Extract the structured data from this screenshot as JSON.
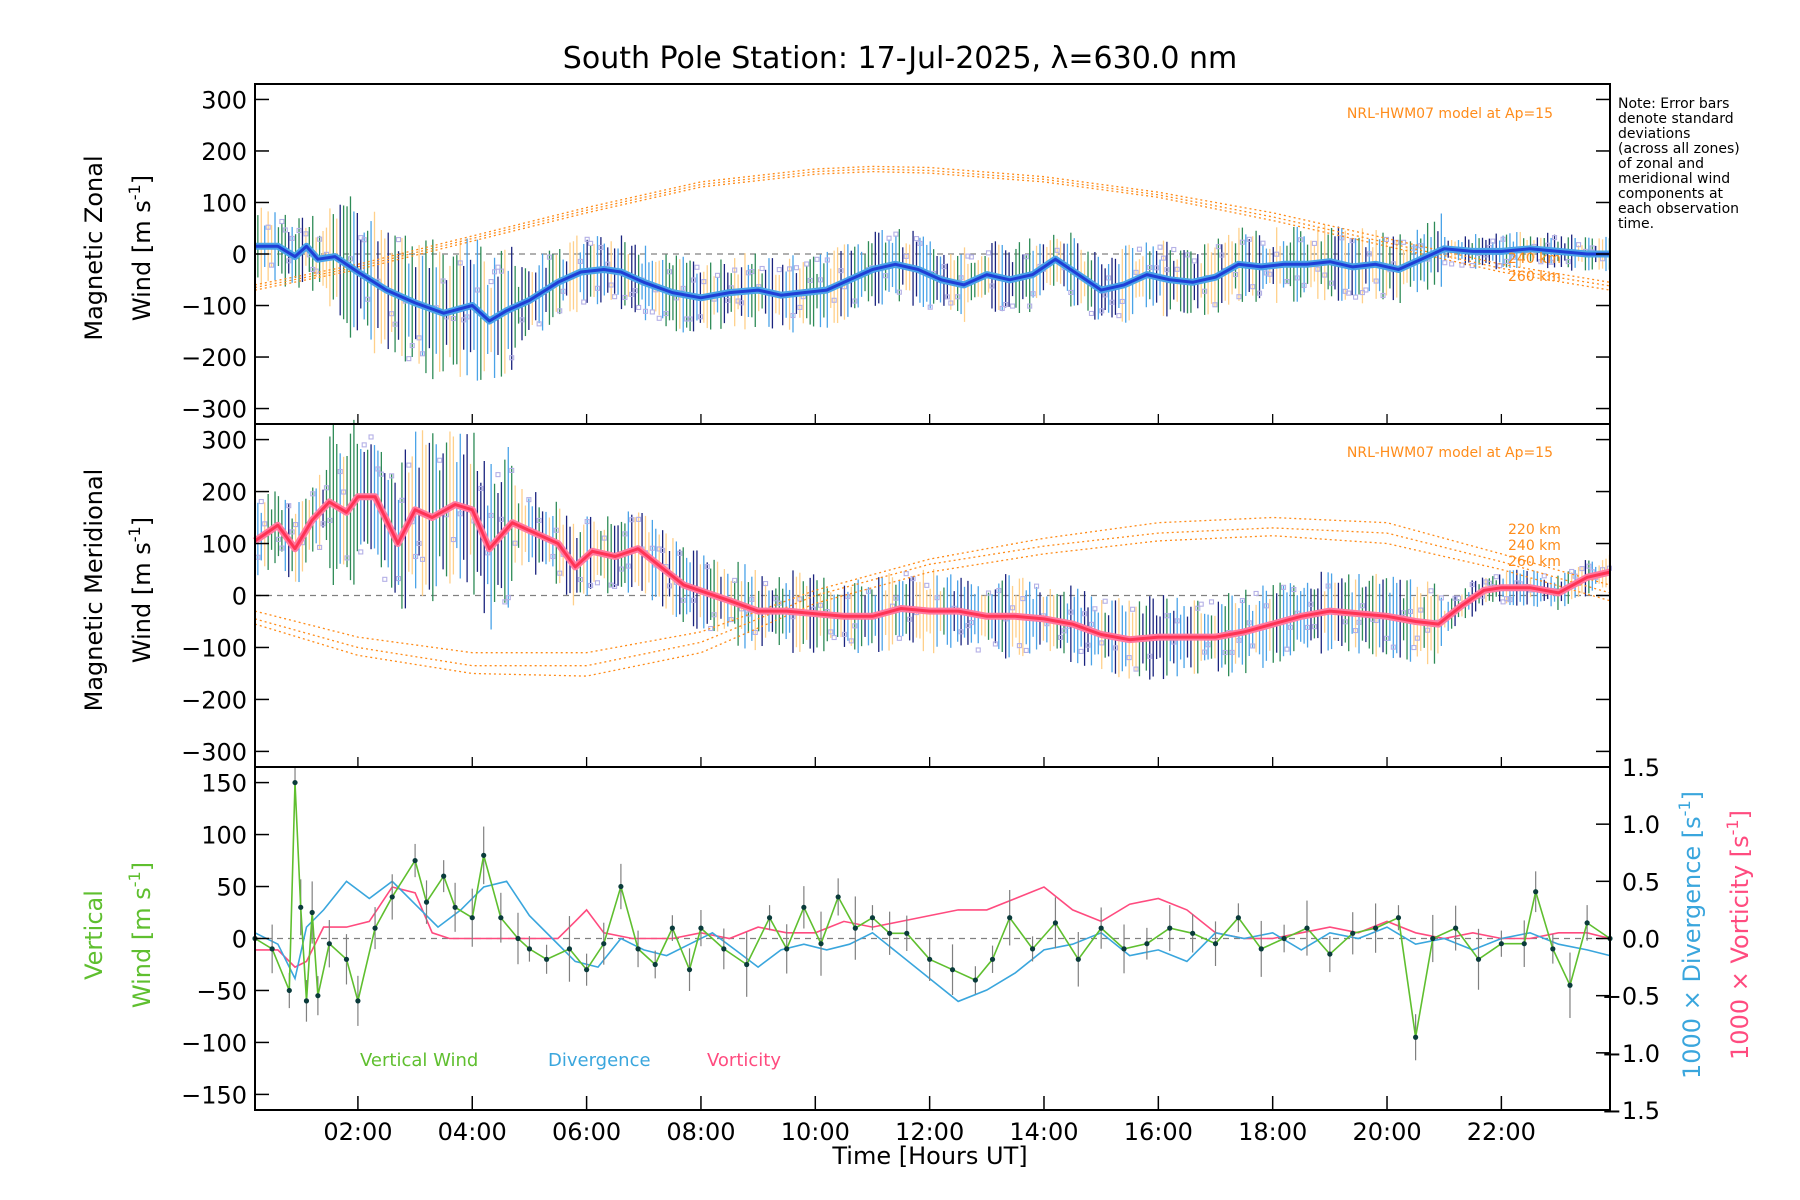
{
  "colors": {
    "zonal_mean": "#1f3fd6",
    "zonal_light": "#4aa3e8",
    "meridional_mean": "#ff3355",
    "meridional_light": "#ff7aa0",
    "model": "#ff8c1a",
    "scatter": "#b4b0e6",
    "err_dark": "#1a237e",
    "err_green": "#2e8b57",
    "err_light": "#ffd08a",
    "vertical": "#5fbf2f",
    "vertical_pts": "#0a3b3b",
    "divergence": "#3aa6dd",
    "vorticity": "#ff4b7f",
    "grey": "#808080"
  },
  "chart_data": [
    {
      "type": "line",
      "panel": "zonal",
      "title": "South Pole Station: 17-Jul-2025, λ=630.0 nm",
      "ylabel_line1": "Magnetic Zonal",
      "ylabel_line2": "Wind [m s",
      "ylabel_exp": "-1",
      "ylabel_close": "]",
      "xlim": [
        0.2,
        23.9
      ],
      "ylim": [
        -330,
        330
      ],
      "yticks": [
        300,
        200,
        100,
        0,
        -100,
        -200,
        -300
      ],
      "ytick_labels": [
        "300",
        "200",
        "100",
        "0",
        "−100",
        "−200",
        "−300"
      ],
      "model_label": "NRL-HWM07 model at Ap=15",
      "model_altitudes": [
        "240 km",
        "260 km"
      ],
      "series": [
        {
          "name": "Zonal wind mean",
          "x": [
            0.2,
            0.6,
            0.9,
            1.1,
            1.3,
            1.6,
            2.0,
            2.5,
            3.0,
            3.5,
            4.0,
            4.3,
            4.6,
            5.0,
            5.5,
            5.9,
            6.3,
            6.6,
            7.0,
            7.5,
            8.0,
            8.5,
            9.0,
            9.4,
            9.8,
            10.2,
            10.6,
            11.0,
            11.4,
            11.8,
            12.2,
            12.6,
            13.0,
            13.4,
            13.8,
            14.2,
            14.6,
            15.0,
            15.4,
            15.8,
            16.2,
            16.6,
            17.0,
            17.4,
            17.8,
            18.2,
            18.6,
            19.0,
            19.4,
            19.8,
            20.2,
            20.6,
            21.0,
            21.5,
            22.0,
            22.5,
            23.0,
            23.5,
            23.9
          ],
          "y": [
            15,
            15,
            -5,
            15,
            -10,
            -5,
            -35,
            -70,
            -95,
            -115,
            -100,
            -130,
            -110,
            -90,
            -55,
            -35,
            -30,
            -35,
            -55,
            -75,
            -85,
            -75,
            -70,
            -80,
            -75,
            -70,
            -50,
            -30,
            -20,
            -30,
            -50,
            -60,
            -40,
            -50,
            -40,
            -10,
            -40,
            -70,
            -60,
            -40,
            -50,
            -55,
            -45,
            -20,
            -25,
            -20,
            -20,
            -15,
            -25,
            -20,
            -30,
            -10,
            10,
            5,
            5,
            10,
            5,
            0,
            0
          ]
        },
        {
          "name": "HWM07 220 km",
          "x": [
            0.2,
            2,
            4,
            6,
            8,
            10,
            11,
            12,
            14,
            16,
            18,
            20,
            22,
            23.9
          ],
          "y": [
            -60,
            -20,
            35,
            90,
            140,
            165,
            170,
            168,
            150,
            120,
            80,
            30,
            -20,
            -55
          ]
        },
        {
          "name": "HWM07 240 km",
          "x": [
            0.2,
            2,
            4,
            6,
            8,
            10,
            11,
            12,
            14,
            16,
            18,
            20,
            22,
            23.9
          ],
          "y": [
            -65,
            -25,
            30,
            85,
            135,
            160,
            165,
            162,
            145,
            115,
            72,
            22,
            -28,
            -62
          ]
        },
        {
          "name": "HWM07 260 km",
          "x": [
            0.2,
            2,
            4,
            6,
            8,
            10,
            11,
            12,
            14,
            16,
            18,
            20,
            22,
            23.9
          ],
          "y": [
            -70,
            -30,
            25,
            80,
            130,
            155,
            160,
            157,
            140,
            110,
            65,
            15,
            -35,
            -70
          ]
        }
      ]
    },
    {
      "type": "line",
      "panel": "meridional",
      "ylabel_line1": "Magnetic Meridional",
      "ylabel_line2": "Wind [m s",
      "ylabel_exp": "-1",
      "ylabel_close": "]",
      "xlim": [
        0.2,
        23.9
      ],
      "ylim": [
        -330,
        330
      ],
      "yticks": [
        300,
        200,
        100,
        0,
        -100,
        -200,
        -300
      ],
      "ytick_labels": [
        "300",
        "200",
        "100",
        "0",
        "−100",
        "−200",
        "−300"
      ],
      "model_label": "NRL-HWM07 model at Ap=15",
      "model_altitudes": [
        "220 km",
        "240 km",
        "260 km"
      ],
      "series": [
        {
          "name": "Meridional wind mean",
          "x": [
            0.2,
            0.6,
            0.9,
            1.2,
            1.5,
            1.8,
            2.0,
            2.3,
            2.7,
            3.0,
            3.3,
            3.7,
            4.0,
            4.3,
            4.7,
            5.0,
            5.5,
            5.8,
            6.1,
            6.5,
            6.9,
            7.3,
            7.7,
            8.1,
            8.5,
            9.0,
            9.5,
            10.0,
            10.5,
            11.0,
            11.5,
            12.0,
            12.5,
            13.0,
            13.5,
            14.0,
            14.5,
            15.0,
            15.5,
            16.0,
            16.5,
            17.0,
            17.5,
            18.0,
            18.5,
            19.0,
            19.5,
            20.0,
            20.5,
            20.9,
            21.3,
            21.7,
            22.0,
            22.5,
            23.0,
            23.5,
            23.9
          ],
          "y": [
            105,
            135,
            90,
            145,
            180,
            160,
            190,
            190,
            100,
            165,
            150,
            175,
            165,
            90,
            140,
            125,
            100,
            55,
            85,
            75,
            90,
            55,
            20,
            5,
            -10,
            -30,
            -30,
            -35,
            -40,
            -40,
            -25,
            -30,
            -30,
            -40,
            -40,
            -45,
            -55,
            -75,
            -85,
            -80,
            -80,
            -80,
            -70,
            -55,
            -40,
            -30,
            -35,
            -40,
            -50,
            -55,
            -20,
            10,
            15,
            15,
            5,
            35,
            45
          ]
        },
        {
          "name": "HWM07 220 km",
          "x": [
            0.2,
            2,
            4,
            6,
            8,
            10,
            12,
            14,
            16,
            18,
            20,
            22,
            23.9
          ],
          "y": [
            -30,
            -80,
            -110,
            -110,
            -70,
            10,
            70,
            110,
            140,
            150,
            140,
            80,
            20
          ]
        },
        {
          "name": "HWM07 240 km",
          "x": [
            0.2,
            2,
            4,
            6,
            8,
            10,
            12,
            14,
            16,
            18,
            20,
            22,
            23.9
          ],
          "y": [
            -45,
            -100,
            -135,
            -135,
            -90,
            0,
            60,
            95,
            120,
            130,
            120,
            65,
            5
          ]
        },
        {
          "name": "HWM07 260 km",
          "x": [
            0.2,
            2,
            4,
            6,
            8,
            10,
            12,
            14,
            16,
            18,
            20,
            22,
            23.9
          ],
          "y": [
            -55,
            -115,
            -150,
            -155,
            -110,
            -15,
            45,
            80,
            105,
            115,
            100,
            50,
            -10
          ]
        }
      ]
    },
    {
      "type": "line",
      "panel": "vertical",
      "ylabel_line1": "Vertical",
      "ylabel_line2": "Wind [m s",
      "ylabel_exp": "-1",
      "ylabel_close": "]",
      "y2label_div": "1000 × Divergence [s",
      "y2label_vort": "1000 × Vorticity [s",
      "y2label_exp": "-1",
      "y2label_close": "]",
      "xlabel": "Time [Hours UT]",
      "xlim": [
        0.2,
        23.9
      ],
      "ylim": [
        -165,
        165
      ],
      "y2lim": [
        -1.5,
        1.5
      ],
      "yticks": [
        150,
        100,
        50,
        0,
        -50,
        -100,
        -150
      ],
      "ytick_labels": [
        "150",
        "100",
        "50",
        "0",
        "−50",
        "−100",
        "−150"
      ],
      "y2ticks": [
        1.5,
        1.0,
        0.5,
        0.0,
        -0.5,
        -1.0,
        -1.5
      ],
      "y2tick_labels": [
        "1.5",
        "1.0",
        "0.5",
        "0.0",
        "−0.5",
        "−1.0",
        "−1.5"
      ],
      "xticks": [
        2,
        4,
        6,
        8,
        10,
        12,
        14,
        16,
        18,
        20,
        22
      ],
      "xtick_labels": [
        "02:00",
        "04:00",
        "06:00",
        "08:00",
        "10:00",
        "12:00",
        "14:00",
        "16:00",
        "18:00",
        "20:00",
        "22:00"
      ],
      "legend": [
        "Vertical Wind",
        "Divergence",
        "Vorticity"
      ],
      "series": [
        {
          "name": "Vertical Wind",
          "x": [
            0.2,
            0.5,
            0.8,
            0.9,
            1.0,
            1.1,
            1.2,
            1.3,
            1.5,
            1.8,
            2.0,
            2.3,
            2.6,
            3.0,
            3.2,
            3.5,
            3.7,
            4.0,
            4.2,
            4.5,
            4.8,
            5.0,
            5.3,
            5.7,
            6.0,
            6.3,
            6.6,
            6.9,
            7.2,
            7.5,
            7.8,
            8.0,
            8.4,
            8.8,
            9.2,
            9.5,
            9.8,
            10.1,
            10.4,
            10.7,
            11.0,
            11.3,
            11.6,
            12.0,
            12.4,
            12.8,
            13.1,
            13.4,
            13.8,
            14.2,
            14.6,
            15.0,
            15.4,
            15.8,
            16.2,
            16.6,
            17.0,
            17.4,
            17.8,
            18.2,
            18.6,
            19.0,
            19.4,
            19.8,
            20.2,
            20.5,
            20.8,
            21.2,
            21.6,
            22.0,
            22.4,
            22.6,
            22.9,
            23.2,
            23.5,
            23.9
          ],
          "y": [
            0,
            -10,
            -50,
            150,
            30,
            -60,
            25,
            -55,
            -5,
            -20,
            -60,
            10,
            40,
            75,
            35,
            60,
            30,
            20,
            80,
            20,
            0,
            -10,
            -20,
            -10,
            -30,
            -5,
            50,
            -10,
            -25,
            10,
            -30,
            10,
            -10,
            -25,
            20,
            -10,
            30,
            -5,
            40,
            10,
            20,
            5,
            5,
            -20,
            -30,
            -40,
            -20,
            20,
            -10,
            15,
            -20,
            10,
            -10,
            -5,
            10,
            5,
            -5,
            20,
            -10,
            0,
            10,
            -15,
            5,
            10,
            20,
            -95,
            0,
            10,
            -20,
            -5,
            -5,
            45,
            -10,
            -45,
            15,
            0
          ]
        },
        {
          "name": "Divergence",
          "x": [
            0.2,
            0.6,
            0.9,
            1.1,
            1.4,
            1.8,
            2.2,
            2.6,
            3.0,
            3.4,
            3.8,
            4.2,
            4.6,
            5.0,
            5.4,
            5.8,
            6.2,
            6.6,
            7.0,
            7.4,
            7.8,
            8.2,
            8.6,
            9.0,
            9.4,
            9.8,
            10.2,
            10.6,
            11.0,
            11.5,
            12.0,
            12.5,
            13.0,
            13.5,
            14.0,
            14.5,
            15.0,
            15.5,
            16.0,
            16.5,
            17.0,
            17.5,
            18.0,
            18.5,
            19.0,
            19.5,
            20.0,
            20.5,
            21.0,
            21.5,
            22.0,
            22.5,
            23.0,
            23.5,
            23.9
          ],
          "y": [
            0.05,
            -0.05,
            -0.35,
            0.1,
            0.25,
            0.5,
            0.35,
            0.5,
            0.3,
            0.1,
            0.25,
            0.45,
            0.5,
            0.2,
            0.0,
            -0.2,
            -0.25,
            0.0,
            -0.1,
            -0.15,
            -0.05,
            0.05,
            -0.1,
            -0.25,
            -0.1,
            -0.05,
            -0.1,
            -0.05,
            0.05,
            -0.15,
            -0.35,
            -0.55,
            -0.45,
            -0.3,
            -0.1,
            -0.05,
            0.05,
            -0.15,
            -0.1,
            -0.2,
            0.05,
            0.0,
            0.05,
            -0.1,
            0.05,
            0.0,
            0.1,
            -0.05,
            0.0,
            -0.1,
            0.0,
            0.05,
            -0.05,
            -0.1,
            -0.15
          ]
        },
        {
          "name": "Vorticity",
          "x": [
            0.2,
            0.6,
            0.9,
            1.1,
            1.4,
            1.8,
            2.2,
            2.6,
            3.0,
            3.3,
            3.6,
            4.0,
            4.5,
            5.0,
            5.5,
            5.8,
            6.0,
            6.3,
            6.8,
            7.5,
            8.0,
            8.5,
            9.0,
            9.5,
            10.0,
            10.5,
            11.0,
            11.5,
            12.0,
            12.5,
            13.0,
            13.5,
            14.0,
            14.5,
            15.0,
            15.5,
            16.0,
            16.5,
            17.0,
            17.5,
            18.0,
            18.5,
            19.0,
            19.5,
            20.0,
            20.5,
            21.0,
            21.5,
            22.0,
            22.5,
            23.0,
            23.5,
            23.9
          ],
          "y": [
            -0.1,
            -0.1,
            -0.25,
            -0.2,
            0.1,
            0.1,
            0.15,
            0.45,
            0.4,
            0.05,
            0.0,
            0.0,
            0.0,
            0.0,
            0.0,
            0.15,
            0.25,
            0.05,
            0.0,
            0.0,
            0.05,
            0.0,
            0.1,
            0.05,
            0.05,
            0.15,
            0.1,
            0.15,
            0.2,
            0.25,
            0.25,
            0.35,
            0.45,
            0.25,
            0.15,
            0.3,
            0.35,
            0.25,
            0.05,
            0.0,
            0.0,
            0.05,
            0.1,
            0.05,
            0.15,
            0.05,
            0.0,
            0.05,
            0.0,
            0.0,
            0.05,
            0.05,
            0.0
          ]
        }
      ]
    }
  ],
  "note_lines": [
    "Note: Error bars",
    "denote standard",
    "deviations",
    "(across all zones)",
    "of zonal and",
    "meridional wind",
    "components at",
    "each observation",
    "time."
  ]
}
